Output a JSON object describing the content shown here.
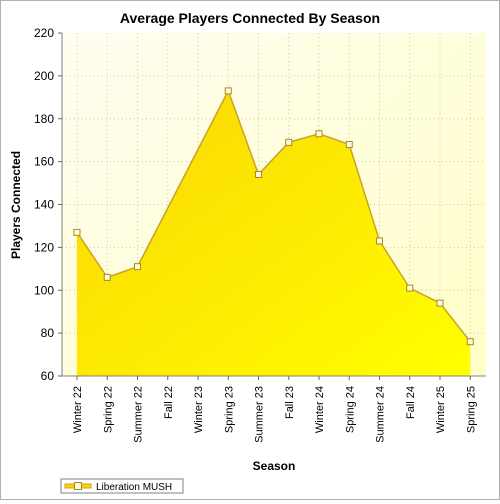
{
  "chart_data": {
    "type": "area",
    "title": "Average Players Connected By Season",
    "xlabel": "Season",
    "ylabel": "Players Connected",
    "ylim": [
      60,
      220
    ],
    "yticks": [
      60,
      80,
      100,
      120,
      140,
      160,
      180,
      200,
      220
    ],
    "categories": [
      "Winter 22",
      "Spring 22",
      "Summer 22",
      "Fall 22",
      "Winter 23",
      "Spring 23",
      "Summer 23",
      "Fall 23",
      "Winter 24",
      "Spring 24",
      "Summer 24",
      "Fall 24",
      "Winter 25",
      "Spring 25"
    ],
    "series": [
      {
        "name": "Liberation MUSH",
        "values": [
          127,
          106,
          111,
          null,
          null,
          193,
          154,
          169,
          173,
          168,
          123,
          101,
          94,
          76
        ]
      }
    ],
    "grid": true,
    "legend": "bottom-left",
    "colors": {
      "area_top": "#fbd504",
      "area_bottom": "#ffff00",
      "line": "#c9a227",
      "marker_fill": "#fffbe0",
      "plot_bg_top": "#fffdf0",
      "plot_bg_bottom": "#ffffc8",
      "grid": "#c8c8a0"
    }
  }
}
